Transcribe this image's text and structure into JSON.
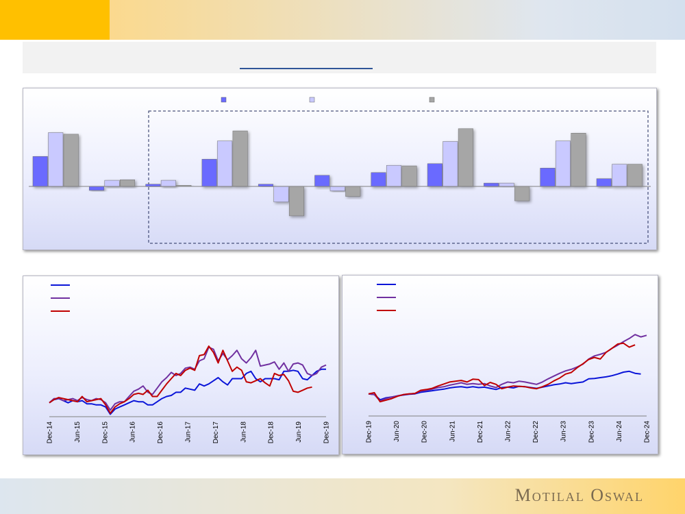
{
  "brand": "Motilal Oswal",
  "colors": {
    "series_1": "#6b6bff",
    "series_2": "#c9c9ff",
    "series_3": "#a6a6a6",
    "line_1": "#0a14d8",
    "line_2": "#7030a0",
    "line_3": "#c00000"
  },
  "chart_data": [
    {
      "type": "bar",
      "legend_placement": "top",
      "grid": false,
      "ylim": [
        -7,
        12
      ],
      "series": [
        {
          "values": [
            5.4,
            -0.7,
            0.4,
            4.9,
            0.4,
            2.0,
            2.5,
            4.1,
            0.6,
            3.3,
            1.4
          ]
        },
        {
          "values": [
            9.7,
            1.1,
            1.1,
            8.2,
            -2.8,
            -0.8,
            3.8,
            8.1,
            0.6,
            8.2,
            4.0
          ]
        },
        {
          "values": [
            9.4,
            1.2,
            0.2,
            10.0,
            -5.3,
            -1.8,
            3.7,
            10.4,
            -2.6,
            9.6,
            4.0
          ]
        }
      ]
    },
    {
      "type": "line",
      "grid": false,
      "x_ticks": [
        "Dec-14",
        "Jun-15",
        "Dec-15",
        "Jun-16",
        "Dec-16",
        "Jun-17",
        "Dec-17",
        "Jun-18",
        "Dec-18",
        "Jun-19",
        "Dec-19"
      ],
      "ylim": [
        90,
        175
      ],
      "series": [
        {
          "values": [
            100,
            103,
            104,
            102,
            100,
            102,
            101,
            102,
            99,
            99,
            98,
            98,
            96,
            89,
            94,
            96,
            98,
            100,
            102,
            101,
            101,
            98,
            98,
            101,
            104,
            106,
            107,
            110,
            110,
            114,
            113,
            112,
            118,
            116,
            118,
            121,
            124,
            120,
            117,
            123,
            123,
            123,
            128,
            130,
            123,
            120,
            123,
            123,
            123,
            122,
            130,
            130,
            131,
            130,
            123,
            122,
            126,
            130,
            132,
            132
          ]
        },
        {
          "values": [
            100,
            104,
            104,
            102,
            103,
            104,
            102,
            105,
            103,
            102,
            104,
            103,
            100,
            93,
            99,
            101,
            101,
            106,
            111,
            113,
            116,
            110,
            108,
            114,
            120,
            124,
            129,
            126,
            128,
            133,
            134,
            132,
            140,
            142,
            153,
            151,
            140,
            147,
            141,
            145,
            150,
            142,
            138,
            143,
            150,
            135,
            136,
            137,
            139,
            132,
            138,
            130,
            137,
            138,
            136,
            128,
            126,
            128,
            134,
            136
          ]
        },
        {
          "values": [
            100,
            103,
            105,
            104,
            103,
            102,
            101,
            106,
            101,
            102,
            103,
            104,
            98,
            90,
            96,
            99,
            101,
            104,
            108,
            109,
            108,
            112,
            106,
            106,
            112,
            118,
            123,
            128,
            126,
            131,
            133,
            131,
            145,
            146,
            154,
            148,
            138,
            150,
            140,
            130,
            134,
            131,
            120,
            119,
            121,
            123,
            119,
            116,
            128,
            126,
            127,
            121,
            111,
            110,
            112,
            114,
            115
          ]
        }
      ]
    },
    {
      "type": "line",
      "grid": false,
      "x_ticks": [
        "Dec-19",
        "Jun-20",
        "Dec-20",
        "Jun-21",
        "Dec-21",
        "Jun-22",
        "Dec-22",
        "Jun-23",
        "Dec-23",
        "Jun-24",
        "Dec-24"
      ],
      "ylim": [
        70,
        330
      ],
      "series": [
        {
          "values": [
            100,
            98,
            85,
            90,
            92,
            95,
            97,
            99,
            100,
            104,
            106,
            108,
            110,
            112,
            115,
            117,
            118,
            116,
            118,
            116,
            117,
            114,
            111,
            116,
            117,
            115,
            119,
            118,
            116,
            114,
            117,
            120,
            123,
            125,
            128,
            126,
            128,
            130,
            138,
            139,
            141,
            143,
            146,
            150,
            155,
            157,
            152,
            150
          ]
        },
        {
          "values": [
            100,
            98,
            82,
            88,
            92,
            95,
            98,
            100,
            101,
            107,
            109,
            112,
            116,
            118,
            122,
            125,
            128,
            124,
            126,
            124,
            126,
            120,
            116,
            124,
            130,
            128,
            132,
            130,
            127,
            124,
            130,
            138,
            145,
            152,
            158,
            162,
            168,
            175,
            188,
            196,
            200,
            205,
            215,
            223,
            232,
            240,
            250,
            244,
            248
          ]
        },
        {
          "values": [
            100,
            103,
            80,
            84,
            88,
            94,
            98,
            100,
            101,
            109,
            111,
            114,
            120,
            125,
            130,
            132,
            134,
            130,
            137,
            136,
            121,
            129,
            124,
            113,
            117,
            120,
            119,
            118,
            115,
            113,
            118,
            124,
            133,
            140,
            150,
            154,
            166,
            176,
            187,
            192,
            188,
            205,
            215,
            226,
            228,
            218,
            224
          ]
        }
      ]
    }
  ]
}
